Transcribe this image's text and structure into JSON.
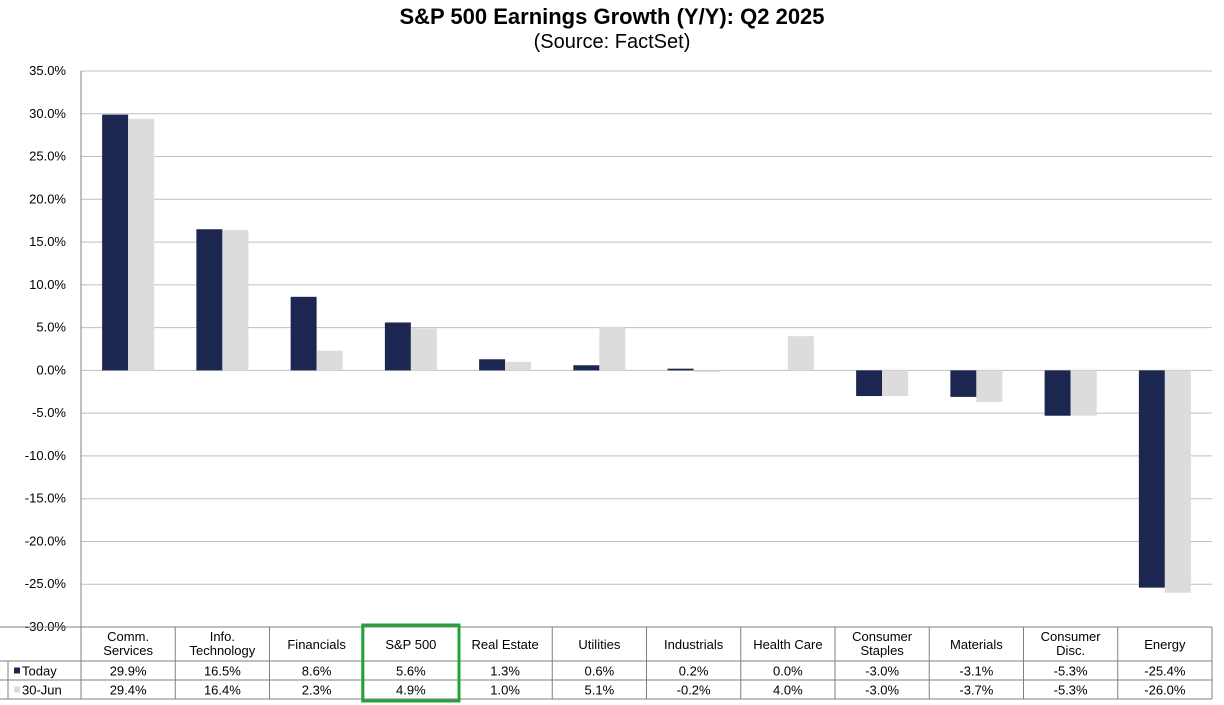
{
  "chart_data": {
    "type": "bar",
    "title": "S&P 500 Earnings Growth (Y/Y): Q2 2025",
    "subtitle": "(Source: FactSet)",
    "categories": [
      [
        "Comm.",
        "Services"
      ],
      [
        "Info.",
        "Technology"
      ],
      [
        "Financials"
      ],
      [
        "S&P 500"
      ],
      [
        "Real Estate"
      ],
      [
        "Utilities"
      ],
      [
        "Industrials"
      ],
      [
        "Health Care"
      ],
      [
        "Consumer",
        "Staples"
      ],
      [
        "Materials"
      ],
      [
        "Consumer",
        "Disc."
      ],
      [
        "Energy"
      ]
    ],
    "series": [
      {
        "name": "Today",
        "color": "#1b2750",
        "values": [
          29.9,
          16.5,
          8.6,
          5.6,
          1.3,
          0.6,
          0.2,
          0.0,
          -3.0,
          -3.1,
          -5.3,
          -25.4
        ],
        "labels": [
          "29.9%",
          "16.5%",
          "8.6%",
          "5.6%",
          "1.3%",
          "0.6%",
          "0.2%",
          "0.0%",
          "-3.0%",
          "-3.1%",
          "-5.3%",
          "-25.4%"
        ]
      },
      {
        "name": "30-Jun",
        "color": "#dcdcdc",
        "values": [
          29.4,
          16.4,
          2.3,
          4.9,
          1.0,
          5.1,
          -0.2,
          4.0,
          -3.0,
          -3.7,
          -5.3,
          -26.0
        ],
        "labels": [
          "29.4%",
          "16.4%",
          "2.3%",
          "4.9%",
          "1.0%",
          "5.1%",
          "-0.2%",
          "4.0%",
          "-3.0%",
          "-3.7%",
          "-5.3%",
          "-26.0%"
        ]
      }
    ],
    "ylim": [
      -30,
      35
    ],
    "yticks": [
      "35.0%",
      "30.0%",
      "25.0%",
      "20.0%",
      "15.0%",
      "10.0%",
      "5.0%",
      "0.0%",
      "-5.0%",
      "-10.0%",
      "-15.0%",
      "-20.0%",
      "-25.0%",
      "-30.0%"
    ],
    "ytick_values": [
      35,
      30,
      25,
      20,
      15,
      10,
      5,
      0,
      -5,
      -10,
      -15,
      -20,
      -25,
      -30
    ],
    "grid": true,
    "legend": "data-table",
    "highlight_category": "S&P 500",
    "highlight_color": "#22a33a"
  }
}
